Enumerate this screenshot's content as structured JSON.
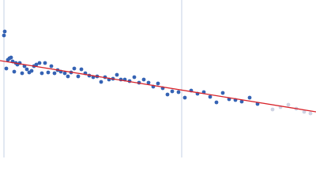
{
  "chart_data": {
    "type": "scatter",
    "xlim": [
      0,
      400
    ],
    "ylim": [
      0,
      200
    ],
    "vlines": [
      5,
      230
    ],
    "vline_color": "#c5d0e6",
    "fit": {
      "color": "#d8232a",
      "x": [
        0,
        400
      ],
      "y": [
        123,
        58
      ]
    },
    "series": [
      {
        "color": "#3563b4",
        "x": [
          5,
          6,
          8,
          10,
          12,
          14,
          16,
          18,
          20,
          22,
          25,
          28,
          31,
          34,
          37,
          40,
          43,
          46,
          50,
          53,
          57,
          61,
          65,
          69,
          73,
          77,
          82,
          86,
          90,
          94,
          99,
          103,
          108,
          113,
          118,
          123,
          128,
          133,
          138,
          143,
          148,
          153,
          158,
          164,
          170,
          176,
          182,
          188,
          194,
          200,
          206,
          212,
          218,
          226,
          234,
          242,
          250,
          258,
          266,
          274,
          282,
          290,
          298,
          306,
          316,
          326
        ],
        "values": [
          155,
          160,
          113,
          124,
          126,
          127,
          122,
          109,
          120,
          118,
          120,
          107,
          116,
          112,
          108,
          110,
          116,
          118,
          120,
          107,
          120,
          108,
          116,
          107,
          111,
          109,
          107,
          103,
          108,
          113,
          103,
          112,
          107,
          104,
          102,
          103,
          96,
          102,
          99,
          100,
          105,
          99,
          99,
          97,
          102,
          95,
          99,
          95,
          90,
          94,
          88,
          80,
          84,
          83,
          76,
          85,
          81,
          83,
          77,
          70,
          82,
          74,
          73,
          71,
          76,
          68
        ]
      },
      {
        "color": "#cfd3e3",
        "x": [
          345,
          355,
          365,
          375,
          385,
          393
        ],
        "values": [
          61,
          64,
          67,
          62,
          58,
          56
        ]
      }
    ]
  }
}
